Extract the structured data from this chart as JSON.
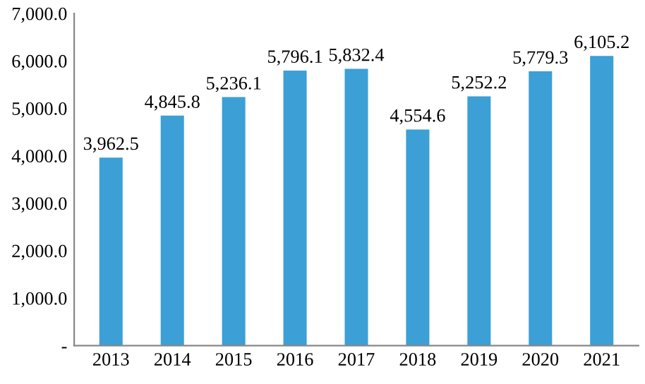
{
  "chart_data": {
    "type": "bar",
    "categories": [
      "2013",
      "2014",
      "2015",
      "2016",
      "2017",
      "2018",
      "2019",
      "2020",
      "2021"
    ],
    "values": [
      3962.5,
      4845.8,
      5236.1,
      5796.1,
      5832.4,
      4554.6,
      5252.2,
      5779.3,
      6105.2
    ],
    "color": "#3c9fd6",
    "value_labels": [
      "3,962.5",
      "4,845.8",
      "5,236.1",
      "5,796.1",
      "5,832.4",
      "4,554.6",
      "5,252.2",
      "5,779.3",
      "6,105.2"
    ],
    "grid": false,
    "legend": false,
    "ylim": [
      0,
      7000
    ],
    "yticks": [
      {
        "value": 0,
        "label": "-"
      },
      {
        "value": 1000,
        "label": "1,000.0"
      },
      {
        "value": 2000,
        "label": "2,000.0"
      },
      {
        "value": 3000,
        "label": "3,000.0"
      },
      {
        "value": 4000,
        "label": "4,000.0"
      },
      {
        "value": 5000,
        "label": "5,000.0"
      },
      {
        "value": 6000,
        "label": "6,000.0"
      },
      {
        "value": 7000,
        "label": "7,000.0"
      }
    ]
  }
}
